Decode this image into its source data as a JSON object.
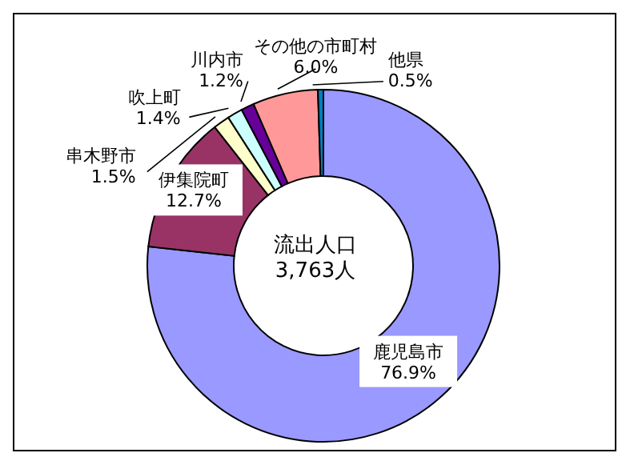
{
  "chart_data": {
    "type": "donut",
    "categories": [
      "鹿児島市",
      "伊集院町",
      "串木野市",
      "吹上町",
      "川内市",
      "その他の市町村",
      "他県"
    ],
    "values": [
      76.9,
      12.7,
      1.5,
      1.4,
      1.2,
      6.0,
      0.5
    ],
    "value_labels": [
      "76.9%",
      "12.7%",
      "1.5%",
      "1.4%",
      "1.2%",
      "6.0%",
      "0.5%"
    ],
    "colors": [
      "#9999ff",
      "#993366",
      "#ffffcc",
      "#ccffff",
      "#660099",
      "#ff9999",
      "#0080c0"
    ],
    "annotations": [
      "流出人口\n3,763人"
    ]
  }
}
